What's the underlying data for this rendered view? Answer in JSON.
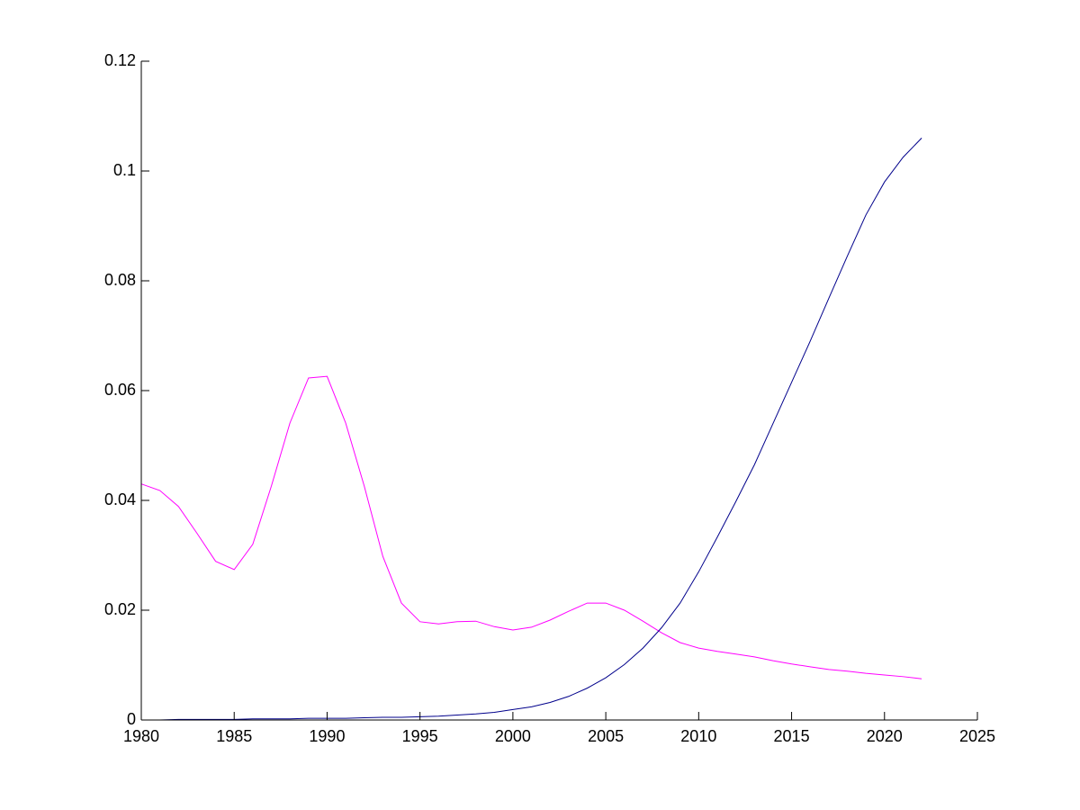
{
  "chart_data": {
    "type": "line",
    "x": [
      1980,
      1981,
      1982,
      1983,
      1984,
      1985,
      1986,
      1987,
      1988,
      1989,
      1990,
      1991,
      1992,
      1993,
      1994,
      1995,
      1996,
      1997,
      1998,
      1999,
      2000,
      2001,
      2002,
      2003,
      2004,
      2005,
      2006,
      2007,
      2008,
      2009,
      2010,
      2011,
      2012,
      2013,
      2014,
      2015,
      2016,
      2017,
      2018,
      2019,
      2020,
      2021,
      2022
    ],
    "series": [
      {
        "color": "#ff00ff",
        "values": [
          0.043,
          0.0418,
          0.0389,
          0.034,
          0.0289,
          0.0274,
          0.032,
          0.0426,
          0.0541,
          0.0623,
          0.0626,
          0.0541,
          0.0426,
          0.0298,
          0.0213,
          0.0179,
          0.0175,
          0.0179,
          0.018,
          0.017,
          0.0164,
          0.0169,
          0.0182,
          0.0198,
          0.0213,
          0.0213,
          0.02,
          0.018,
          0.0159,
          0.0141,
          0.0131,
          0.0125,
          0.012,
          0.0115,
          0.0108,
          0.0102,
          0.0097,
          0.0092,
          0.0089,
          0.0085,
          0.0082,
          0.0079,
          0.0075
        ]
      },
      {
        "color": "#00008b",
        "values": [
          0,
          0,
          0.0001,
          0.0001,
          0.0001,
          0.0001,
          0.0002,
          0.0002,
          0.0002,
          0.0003,
          0.0003,
          0.0003,
          0.0004,
          0.0005,
          0.0005,
          0.0006,
          0.0007,
          0.0009,
          0.0011,
          0.0014,
          0.0019,
          0.0024,
          0.0032,
          0.0043,
          0.0058,
          0.0077,
          0.0101,
          0.0131,
          0.0168,
          0.0213,
          0.027,
          0.0333,
          0.0398,
          0.0465,
          0.054,
          0.0615,
          0.069,
          0.0768,
          0.0845,
          0.092,
          0.098,
          0.1025,
          0.106
        ]
      }
    ],
    "xlim": [
      1980,
      2025
    ],
    "xticks": [
      1980,
      1985,
      1990,
      1995,
      2000,
      2005,
      2010,
      2015,
      2020,
      2025
    ],
    "ylim": [
      0,
      0.12
    ],
    "yticks": [
      0,
      0.02,
      0.04,
      0.06,
      0.08,
      0.1,
      0.12
    ]
  }
}
